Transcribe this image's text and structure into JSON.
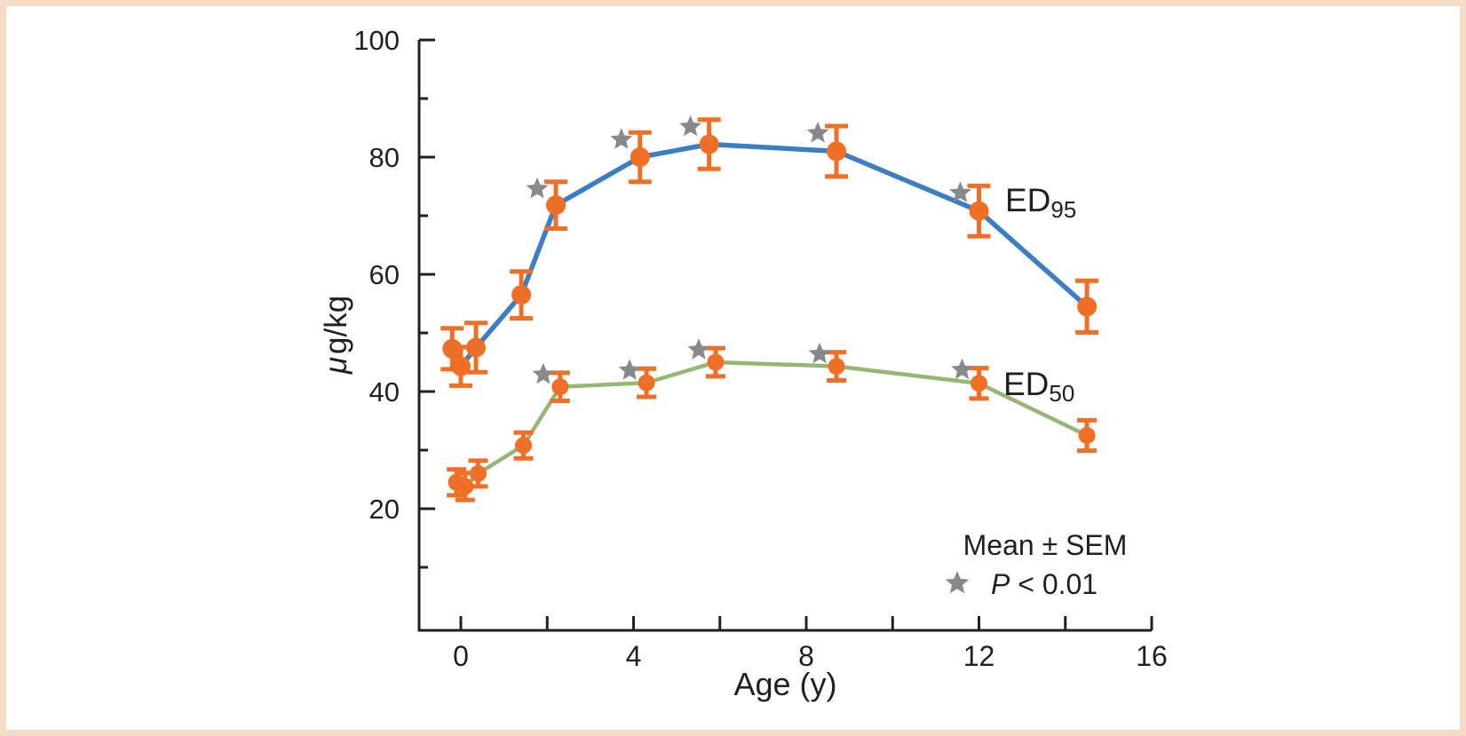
{
  "figure": {
    "background_color": "#ffffff",
    "frame_border_color": "#f4dcc6"
  },
  "chart_data": {
    "type": "line",
    "title": "",
    "xlabel": "Age (y)",
    "ylabel": "μg/kg",
    "xlim": [
      -1,
      16.3
    ],
    "ylim": [
      0,
      100
    ],
    "x_major_ticks": [
      0,
      4,
      8,
      12,
      16
    ],
    "x_minor_ticks": [
      2,
      6,
      10,
      14
    ],
    "y_major_ticks": [
      20,
      40,
      60,
      80,
      100
    ],
    "y_minor_ticks": [
      10,
      30,
      50,
      70,
      90
    ],
    "grid": false,
    "axis_color": "#231f20",
    "marker_color": "#f06f26",
    "star_color": "#87898c",
    "legend": {
      "mean_sem": "Mean ± SEM",
      "p_italic": "P",
      "p_rest": " < 0.01",
      "position": "lower-right"
    },
    "series": [
      {
        "name": "ED95",
        "label_base": "ED",
        "label_sub": "95",
        "line_color": "#3c7dc3",
        "points": [
          {
            "age": -0.2,
            "value": 47.3,
            "sem": 3.5,
            "significant": false
          },
          {
            "age": 0.0,
            "value": 44.3,
            "sem": 3.3,
            "significant": false
          },
          {
            "age": 0.35,
            "value": 47.5,
            "sem": 4.2,
            "significant": false
          },
          {
            "age": 1.4,
            "value": 56.5,
            "sem": 4.0,
            "significant": false
          },
          {
            "age": 2.2,
            "value": 71.8,
            "sem": 4.0,
            "significant": true
          },
          {
            "age": 4.15,
            "value": 80.0,
            "sem": 4.2,
            "significant": true
          },
          {
            "age": 5.75,
            "value": 82.2,
            "sem": 4.2,
            "significant": true
          },
          {
            "age": 8.7,
            "value": 81.0,
            "sem": 4.3,
            "significant": true
          },
          {
            "age": 12.0,
            "value": 70.8,
            "sem": 4.3,
            "significant": true
          },
          {
            "age": 14.5,
            "value": 54.5,
            "sem": 4.4,
            "significant": false
          }
        ]
      },
      {
        "name": "ED50",
        "label_base": "ED",
        "label_sub": "50",
        "line_color": "#94b873",
        "points": [
          {
            "age": -0.1,
            "value": 24.5,
            "sem": 2.2,
            "significant": false
          },
          {
            "age": 0.1,
            "value": 23.8,
            "sem": 2.3,
            "significant": false
          },
          {
            "age": 0.4,
            "value": 26.0,
            "sem": 2.2,
            "significant": false
          },
          {
            "age": 1.45,
            "value": 30.8,
            "sem": 2.2,
            "significant": false
          },
          {
            "age": 2.3,
            "value": 40.8,
            "sem": 2.4,
            "significant": true
          },
          {
            "age": 4.3,
            "value": 41.5,
            "sem": 2.4,
            "significant": true
          },
          {
            "age": 5.9,
            "value": 45.0,
            "sem": 2.4,
            "significant": true
          },
          {
            "age": 8.7,
            "value": 44.3,
            "sem": 2.4,
            "significant": true
          },
          {
            "age": 12.0,
            "value": 41.4,
            "sem": 2.6,
            "significant": true
          },
          {
            "age": 14.5,
            "value": 32.5,
            "sem": 2.6,
            "significant": false
          }
        ]
      }
    ]
  }
}
